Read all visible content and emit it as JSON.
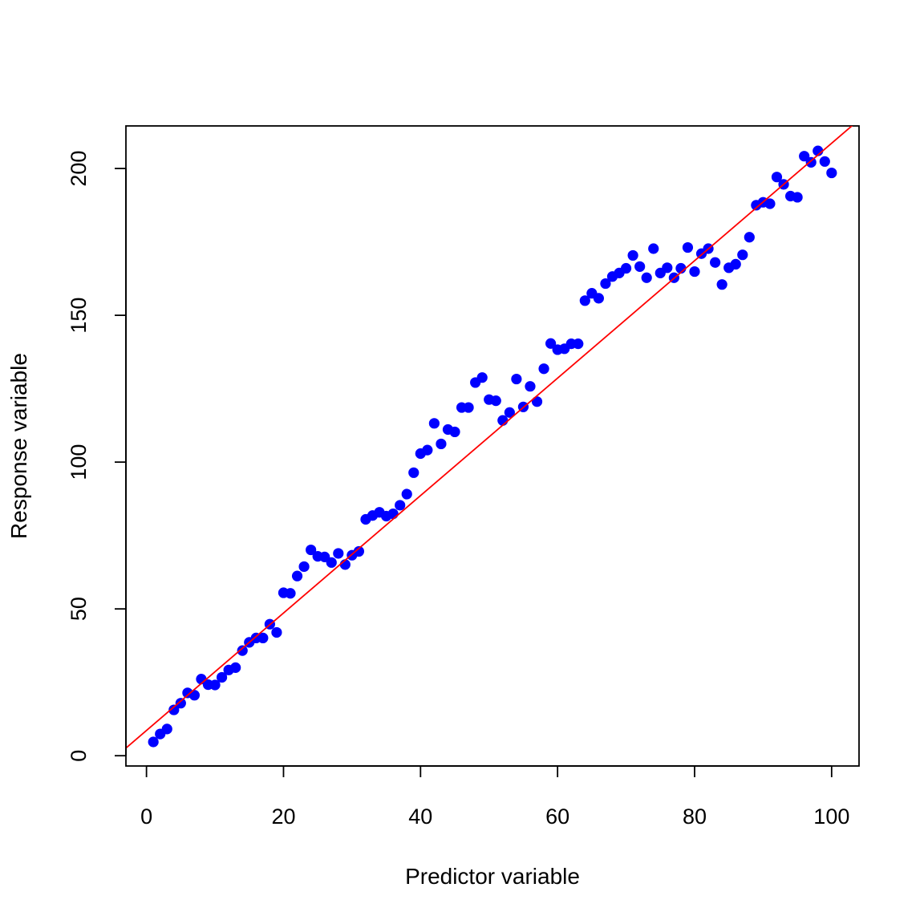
{
  "chart_data": {
    "type": "scatter",
    "xlabel": "Predictor variable",
    "ylabel": "Response variable",
    "xlim": [
      -3,
      104
    ],
    "ylim": [
      -3.5,
      214.5
    ],
    "xticks": [
      0,
      20,
      40,
      60,
      80,
      100
    ],
    "yticks": [
      0,
      50,
      100,
      150,
      200
    ],
    "grid": false,
    "point_color": "#0000ff",
    "line_color": "#ff0000",
    "fit_line": {
      "intercept": 8.6,
      "slope": 2.0
    },
    "x": [
      1,
      2,
      3,
      4,
      5,
      6,
      7,
      8,
      9,
      10,
      11,
      12,
      13,
      14,
      15,
      16,
      17,
      18,
      19,
      20,
      21,
      22,
      23,
      24,
      25,
      26,
      27,
      28,
      29,
      30,
      31,
      32,
      33,
      34,
      35,
      36,
      37,
      38,
      39,
      40,
      41,
      42,
      43,
      44,
      45,
      46,
      47,
      48,
      49,
      50,
      51,
      52,
      53,
      54,
      55,
      56,
      57,
      58,
      59,
      60,
      61,
      62,
      63,
      64,
      65,
      66,
      67,
      68,
      69,
      70,
      71,
      72,
      73,
      74,
      75,
      76,
      77,
      78,
      79,
      80,
      81,
      82,
      83,
      84,
      85,
      86,
      87,
      88,
      89,
      90,
      91,
      92,
      93,
      94,
      95,
      96,
      97,
      98,
      99,
      100
    ],
    "y": [
      4.7,
      7.4,
      9.1,
      15.6,
      17.9,
      21.4,
      20.6,
      26.1,
      24.2,
      24.1,
      26.7,
      29.2,
      30.0,
      35.8,
      38.6,
      40.1,
      40.1,
      44.8,
      42.0,
      55.5,
      55.3,
      61.2,
      64.4,
      70.1,
      67.9,
      67.7,
      65.8,
      68.9,
      65.1,
      68.3,
      69.6,
      80.5,
      81.8,
      82.9,
      81.6,
      82.4,
      85.3,
      89.1,
      96.4,
      102.9,
      104.1,
      113.2,
      106.2,
      111.1,
      110.3,
      118.6,
      118.6,
      127.1,
      128.8,
      121.3,
      120.9,
      114.2,
      116.9,
      128.3,
      118.8,
      125.8,
      120.6,
      131.8,
      140.4,
      138.3,
      138.6,
      140.3,
      140.3,
      155.0,
      157.5,
      155.8,
      160.8,
      163.2,
      164.4,
      166.0,
      170.4,
      166.6,
      162.8,
      172.7,
      164.4,
      166.2,
      162.8,
      166.0,
      173.1,
      164.9,
      171.0,
      172.7,
      168.0,
      160.5,
      166.2,
      167.4,
      170.6,
      176.6,
      187.5,
      188.5,
      188.0,
      197.1,
      194.6,
      190.6,
      190.2,
      204.2,
      202.1,
      206.0,
      202.4,
      198.5
    ]
  }
}
